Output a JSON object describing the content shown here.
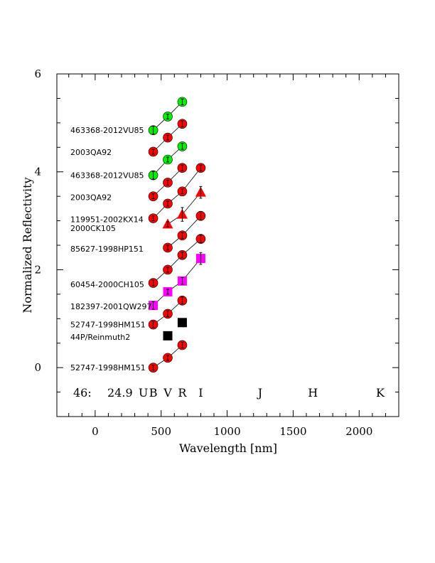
{
  "chart_data": {
    "type": "scatter",
    "xlabel": "Wavelength [nm]",
    "ylabel": "Normalized Reflectivity",
    "xlim": [
      -290,
      2300
    ],
    "ylim": [
      -1.0,
      6.0
    ],
    "xticks": [
      0,
      500,
      1000,
      1500,
      2000
    ],
    "xtick_labels": [
      "0",
      "500",
      "1000",
      "1500",
      "2000"
    ],
    "yticks": [
      0,
      2,
      4,
      6
    ],
    "ytick_labels": [
      "0",
      "2",
      "4",
      "6"
    ],
    "info_text": {
      "id": "46:",
      "value": "24.9"
    },
    "bands": [
      {
        "name": "U",
        "x": 365
      },
      {
        "name": "B",
        "x": 440
      },
      {
        "name": "V",
        "x": 550
      },
      {
        "name": "R",
        "x": 660
      },
      {
        "name": "I",
        "x": 800
      },
      {
        "name": "J",
        "x": 1250
      },
      {
        "name": "H",
        "x": 1650
      },
      {
        "name": "K",
        "x": 2160
      }
    ],
    "colors": {
      "red": "#ff0000",
      "green": "#00ee00",
      "magenta": "#ff00ff",
      "black": "#000000"
    },
    "series": [
      {
        "name": "52747-1998HM151",
        "label_y": 0.0,
        "marker": "circle",
        "color": "red",
        "connected": true,
        "points": [
          {
            "x": 440,
            "y": 0.0,
            "err": 0.05
          },
          {
            "x": 550,
            "y": 0.2,
            "err": 0.05
          },
          {
            "x": 660,
            "y": 0.46,
            "err": 0.06
          }
        ]
      },
      {
        "name": "44P/Reinmuth2",
        "label_y": 0.63,
        "marker": "square",
        "color": "black",
        "connected": false,
        "points": [
          {
            "x": 550,
            "y": 0.65,
            "err": 0.0
          },
          {
            "x": 660,
            "y": 0.92,
            "err": 0.0
          }
        ]
      },
      {
        "name": "52747-1998HM151",
        "label_y": 0.88,
        "marker": "circle",
        "color": "red",
        "connected": true,
        "points": [
          {
            "x": 440,
            "y": 0.88,
            "err": 0.06
          },
          {
            "x": 550,
            "y": 1.1,
            "err": 0.06
          },
          {
            "x": 660,
            "y": 1.37,
            "err": 0.07
          }
        ]
      },
      {
        "name": "182397-2001QW297",
        "label_y": 1.25,
        "marker": "square",
        "color": "magenta",
        "connected": true,
        "points": [
          {
            "x": 440,
            "y": 1.27,
            "err": 0.08
          },
          {
            "x": 550,
            "y": 1.55,
            "err": 0.05
          },
          {
            "x": 660,
            "y": 1.77,
            "err": 0.07
          },
          {
            "x": 800,
            "y": 2.23,
            "err": 0.12
          }
        ]
      },
      {
        "name": "60454-2000CH105",
        "label_y": 1.7,
        "marker": "circle",
        "color": "red",
        "connected": true,
        "points": [
          {
            "x": 440,
            "y": 1.73,
            "err": 0.06
          },
          {
            "x": 550,
            "y": 2.0,
            "err": 0.05
          },
          {
            "x": 660,
            "y": 2.3,
            "err": 0.06
          },
          {
            "x": 800,
            "y": 2.63,
            "err": 0.08
          }
        ]
      },
      {
        "name": "85627-1998HP151",
        "label_y": 2.43,
        "marker": "circle",
        "color": "red",
        "connected": true,
        "points": [
          {
            "x": 550,
            "y": 2.45,
            "err": 0.05
          },
          {
            "x": 660,
            "y": 2.7,
            "err": 0.06
          },
          {
            "x": 800,
            "y": 3.1,
            "err": 0.09
          }
        ]
      },
      {
        "name": "2000CK105",
        "label_y": 2.85,
        "marker": "triangle",
        "color": "red",
        "connected": true,
        "points": [
          {
            "x": 550,
            "y": 2.93,
            "err": 0.05
          },
          {
            "x": 660,
            "y": 3.13,
            "err": 0.14
          },
          {
            "x": 800,
            "y": 3.58,
            "err": 0.12
          }
        ]
      },
      {
        "name": "119951-2002KX14",
        "label_y": 3.03,
        "marker": "circle",
        "color": "red",
        "connected": true,
        "points": [
          {
            "x": 440,
            "y": 3.05,
            "err": 0.05
          },
          {
            "x": 550,
            "y": 3.35,
            "err": 0.05
          },
          {
            "x": 660,
            "y": 3.6,
            "err": 0.05
          },
          {
            "x": 800,
            "y": 4.08,
            "err": 0.06
          }
        ]
      },
      {
        "name": "2003QA92",
        "label_y": 3.48,
        "marker": "circle",
        "color": "red",
        "connected": true,
        "points": [
          {
            "x": 440,
            "y": 3.5,
            "err": 0.05
          },
          {
            "x": 550,
            "y": 3.78,
            "err": 0.05
          },
          {
            "x": 660,
            "y": 4.08,
            "err": 0.06
          }
        ]
      },
      {
        "name": "463368-2012VU85",
        "label_y": 3.93,
        "marker": "circle",
        "color": "green",
        "connected": true,
        "points": [
          {
            "x": 440,
            "y": 3.93,
            "err": 0.08
          },
          {
            "x": 550,
            "y": 4.25,
            "err": 0.05
          },
          {
            "x": 660,
            "y": 4.52,
            "err": 0.06
          }
        ]
      },
      {
        "name": "2003QA92",
        "label_y": 4.4,
        "marker": "circle",
        "color": "red",
        "connected": true,
        "points": [
          {
            "x": 440,
            "y": 4.41,
            "err": 0.05
          },
          {
            "x": 550,
            "y": 4.7,
            "err": 0.05
          },
          {
            "x": 660,
            "y": 4.98,
            "err": 0.06
          }
        ]
      },
      {
        "name": "463368-2012VU85",
        "label_y": 4.85,
        "marker": "circle",
        "color": "green",
        "connected": true,
        "points": [
          {
            "x": 440,
            "y": 4.85,
            "err": 0.08
          },
          {
            "x": 550,
            "y": 5.13,
            "err": 0.05
          },
          {
            "x": 660,
            "y": 5.43,
            "err": 0.06
          }
        ]
      }
    ]
  }
}
